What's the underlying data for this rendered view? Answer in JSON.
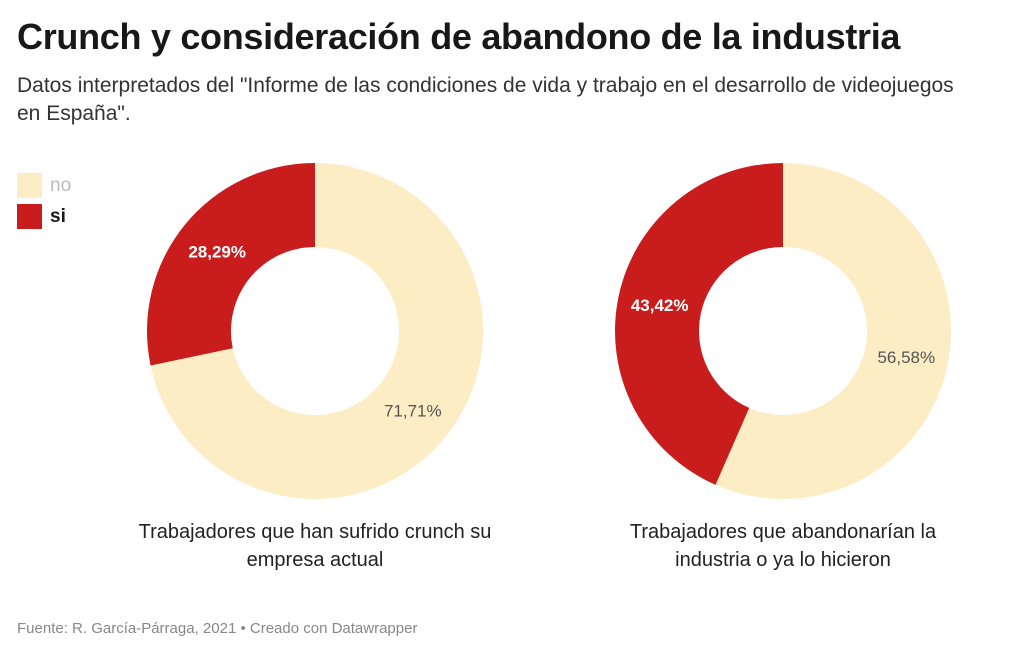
{
  "header": {
    "title": "Crunch y consideración de abandono de la industria",
    "subtitle": "Datos interpretados del \"Informe de las condiciones de vida y trabajo en el desarrollo de videojuegos en España\"."
  },
  "legend": [
    {
      "label": "no",
      "color": "#fdedc5"
    },
    {
      "label": "si",
      "color": "#c91c1c"
    }
  ],
  "chart_data": [
    {
      "type": "pie",
      "subtype": "donut",
      "caption": "Trabajadores que han sufrido crunch su empresa actual",
      "slices": [
        {
          "label": "no",
          "value": 71.71,
          "display": "71,71%",
          "color": "#fdedc5"
        },
        {
          "label": "si",
          "value": 28.29,
          "display": "28,29%",
          "color": "#c91c1c"
        }
      ]
    },
    {
      "type": "pie",
      "subtype": "donut",
      "caption": "Trabajadores que abandonarían la industria o ya lo hicieron",
      "slices": [
        {
          "label": "no",
          "value": 56.58,
          "display": "56,58%",
          "color": "#fdedc5"
        },
        {
          "label": "si",
          "value": 43.42,
          "display": "43,42%",
          "color": "#c91c1c"
        }
      ]
    }
  ],
  "footer": {
    "source": "Fuente: R. García-Párraga, 2021 • Creado con Datawrapper"
  }
}
